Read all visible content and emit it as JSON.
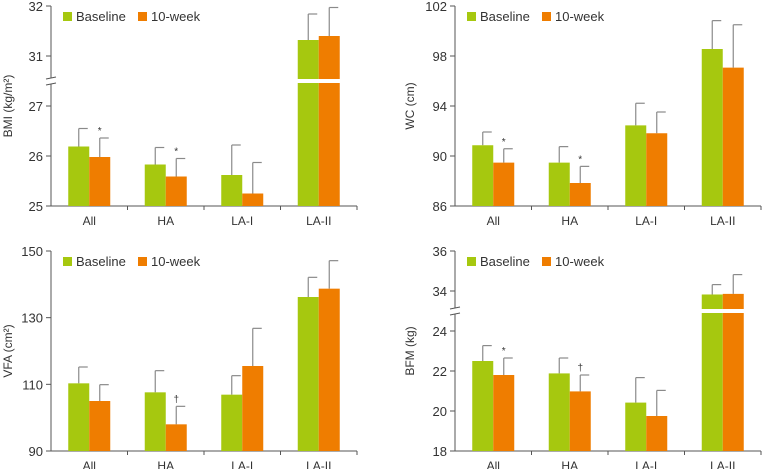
{
  "legend": {
    "baseline": "Baseline",
    "week10": "10-week"
  },
  "colors": {
    "baseline": "#a6c80f",
    "week10": "#ef7d00",
    "error": "#8a8a8a",
    "axis": "#555555"
  },
  "chart_data": [
    {
      "type": "bar",
      "ylabel": "BMI (kg/m²)",
      "categories": [
        "All",
        "HA",
        "LA-I",
        "LA-II"
      ],
      "ticks": [
        25,
        26,
        27,
        31,
        32
      ],
      "ylim": [
        25,
        32
      ],
      "axis_break": [
        27,
        31
      ],
      "legend": "top-left",
      "series": [
        {
          "name": "Baseline",
          "values": [
            26.19,
            25.83,
            25.62,
            31.32
          ],
          "errors": [
            0.36,
            0.34,
            0.6,
            0.52
          ]
        },
        {
          "name": "10-week",
          "values": [
            25.98,
            25.59,
            25.25,
            31.4
          ],
          "errors": [
            0.38,
            0.36,
            0.62,
            0.57
          ]
        }
      ],
      "annotations": [
        {
          "category": "All",
          "series": "10-week",
          "text": "*"
        },
        {
          "category": "HA",
          "series": "10-week",
          "text": "*"
        }
      ]
    },
    {
      "type": "bar",
      "ylabel": "WC (cm)",
      "categories": [
        "All",
        "HA",
        "LA-I",
        "LA-II"
      ],
      "ticks": [
        86,
        90,
        94,
        98,
        102
      ],
      "ylim": [
        86,
        102
      ],
      "axis_break": null,
      "legend": "top-left",
      "series": [
        {
          "name": "Baseline",
          "values": [
            90.86,
            89.47,
            92.45,
            98.56
          ],
          "errors": [
            1.06,
            1.28,
            1.77,
            2.27
          ]
        },
        {
          "name": "10-week",
          "values": [
            89.47,
            87.84,
            91.82,
            97.07
          ],
          "errors": [
            1.11,
            1.33,
            1.7,
            3.43
          ]
        }
      ],
      "annotations": [
        {
          "category": "All",
          "series": "10-week",
          "text": "*"
        },
        {
          "category": "HA",
          "series": "10-week",
          "text": "*"
        }
      ]
    },
    {
      "type": "bar",
      "ylabel": "VFA (cm²)",
      "categories": [
        "All",
        "HA",
        "LA-I",
        "LA-II"
      ],
      "ticks": [
        90,
        110,
        130,
        150
      ],
      "ylim": [
        90,
        150
      ],
      "axis_break": null,
      "legend": "top-left",
      "series": [
        {
          "name": "Baseline",
          "values": [
            110.3,
            107.6,
            106.9,
            136.2
          ],
          "errors": [
            4.9,
            6.5,
            5.7,
            5.9
          ]
        },
        {
          "name": "10-week",
          "values": [
            105.0,
            98.0,
            115.5,
            138.7
          ],
          "errors": [
            4.9,
            5.4,
            11.3,
            8.4
          ]
        }
      ],
      "annotations": [
        {
          "category": "HA",
          "series": "10-week",
          "text": "†"
        }
      ]
    },
    {
      "type": "bar",
      "ylabel": "BFM (kg)",
      "categories": [
        "All",
        "HA",
        "LA-I",
        "LA-II"
      ],
      "ticks": [
        18,
        20,
        22,
        24,
        34,
        36
      ],
      "ylim": [
        18,
        36
      ],
      "axis_break": [
        24,
        34
      ],
      "legend": "top-left",
      "series": [
        {
          "name": "Baseline",
          "values": [
            22.5,
            21.88,
            20.42,
            33.13
          ],
          "errors": [
            0.77,
            0.77,
            1.25,
            1.19
          ]
        },
        {
          "name": "10-week",
          "values": [
            21.8,
            20.98,
            19.75,
            33.28
          ],
          "errors": [
            0.85,
            0.82,
            1.28,
            1.54
          ]
        }
      ],
      "annotations": [
        {
          "category": "All",
          "series": "10-week",
          "text": "*"
        },
        {
          "category": "HA",
          "series": "10-week",
          "text": "†"
        }
      ]
    }
  ]
}
